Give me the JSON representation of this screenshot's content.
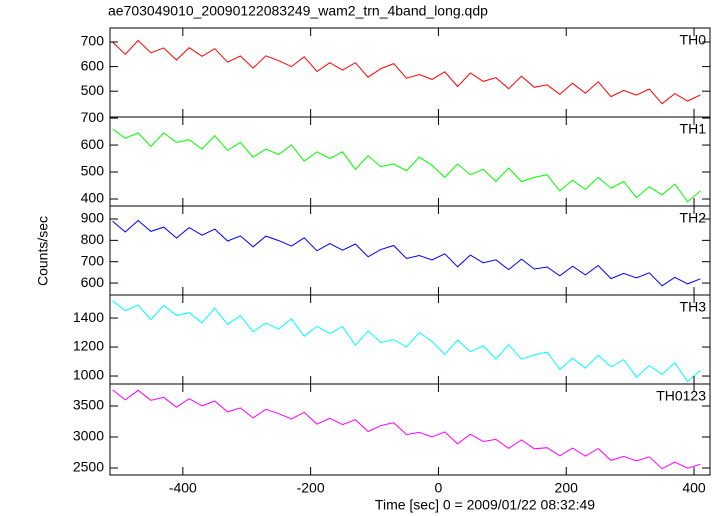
{
  "title": "ae703049010_20090122083249_wam2_trn_4band_long.qdp",
  "x_label": "Time [sec] 0 = 2009/01/22 08:32:49",
  "y_label": "Counts/sec",
  "chart_data": [
    {
      "type": "line",
      "xlim": [
        -514,
        425
      ],
      "xticks": [
        -400,
        -200,
        0,
        200,
        400
      ],
      "ylim": [
        395,
        757
      ],
      "yticks": [
        500,
        600,
        700
      ],
      "x": [
        -510,
        -490,
        -470,
        -450,
        -430,
        -410,
        -390,
        -370,
        -350,
        -330,
        -310,
        -290,
        -270,
        -250,
        -230,
        -210,
        -190,
        -170,
        -150,
        -130,
        -110,
        -90,
        -70,
        -50,
        -30,
        -10,
        10,
        30,
        50,
        70,
        90,
        110,
        130,
        150,
        170,
        190,
        210,
        230,
        250,
        270,
        290,
        310,
        330,
        350,
        370,
        390,
        410
      ],
      "series": [
        {
          "name": "TH0",
          "color": "#ff0000",
          "values": [
            700,
            650,
            706,
            656,
            676,
            627,
            677,
            642,
            673,
            618,
            643,
            594,
            644,
            624,
            600,
            640,
            580,
            616,
            586,
            616,
            557,
            592,
            612,
            553,
            568,
            548,
            579,
            519,
            574,
            540,
            555,
            510,
            561,
            516,
            526,
            487,
            532,
            492,
            538,
            478,
            503,
            484,
            509,
            449,
            490,
            460,
            485
          ]
        }
      ]
    },
    {
      "type": "line",
      "xlim": [
        -514,
        425
      ],
      "xticks": [
        -400,
        -200,
        0,
        200,
        400
      ],
      "ylim": [
        374,
        704
      ],
      "yticks": [
        400,
        500,
        600,
        700
      ],
      "x": [
        -510,
        -490,
        -470,
        -450,
        -430,
        -410,
        -390,
        -370,
        -350,
        -330,
        -310,
        -290,
        -270,
        -250,
        -230,
        -210,
        -190,
        -170,
        -150,
        -130,
        -110,
        -90,
        -70,
        -50,
        -30,
        -10,
        10,
        30,
        50,
        70,
        90,
        110,
        130,
        150,
        170,
        190,
        210,
        230,
        250,
        270,
        290,
        310,
        330,
        350,
        370,
        390,
        410
      ],
      "series": [
        {
          "name": "TH1",
          "color": "#00ff00",
          "values": [
            660,
            625,
            645,
            595,
            645,
            610,
            620,
            585,
            635,
            580,
            610,
            555,
            585,
            565,
            600,
            540,
            575,
            550,
            575,
            510,
            560,
            520,
            530,
            505,
            555,
            525,
            480,
            530,
            490,
            510,
            465,
            515,
            465,
            480,
            490,
            430,
            470,
            435,
            480,
            440,
            465,
            405,
            445,
            415,
            455,
            390,
            430
          ]
        }
      ]
    },
    {
      "type": "line",
      "xlim": [
        -514,
        425
      ],
      "xticks": [
        -400,
        -200,
        0,
        200,
        400
      ],
      "ylim": [
        544,
        961
      ],
      "yticks": [
        600,
        700,
        800,
        900
      ],
      "x": [
        -510,
        -490,
        -470,
        -450,
        -430,
        -410,
        -390,
        -370,
        -350,
        -330,
        -310,
        -290,
        -270,
        -250,
        -230,
        -210,
        -190,
        -170,
        -150,
        -130,
        -110,
        -90,
        -70,
        -50,
        -30,
        -10,
        10,
        30,
        50,
        70,
        90,
        110,
        130,
        150,
        170,
        190,
        210,
        230,
        250,
        270,
        290,
        310,
        330,
        350,
        370,
        390,
        410
      ],
      "series": [
        {
          "name": "TH2",
          "color": "#0000ff",
          "values": [
            890,
            839,
            893,
            842,
            862,
            811,
            860,
            824,
            853,
            797,
            821,
            770,
            820,
            799,
            773,
            812,
            751,
            785,
            754,
            783,
            723,
            757,
            776,
            715,
            729,
            708,
            737,
            676,
            731,
            695,
            709,
            663,
            712,
            666,
            675,
            634,
            679,
            638,
            682,
            621,
            645,
            624,
            648,
            587,
            627,
            596,
            620
          ]
        }
      ]
    },
    {
      "type": "line",
      "xlim": [
        -514,
        425
      ],
      "xticks": [
        -400,
        -200,
        0,
        200,
        400
      ],
      "ylim": [
        945,
        1559
      ],
      "yticks": [
        1000,
        1200,
        1400
      ],
      "x": [
        -510,
        -490,
        -470,
        -450,
        -430,
        -410,
        -390,
        -370,
        -350,
        -330,
        -310,
        -290,
        -270,
        -250,
        -230,
        -210,
        -190,
        -170,
        -150,
        -130,
        -110,
        -90,
        -70,
        -50,
        -30,
        -10,
        10,
        30,
        50,
        70,
        90,
        110,
        130,
        150,
        170,
        190,
        210,
        230,
        250,
        270,
        290,
        310,
        330,
        350,
        370,
        390,
        410
      ],
      "series": [
        {
          "name": "TH3",
          "color": "#00ffff",
          "values": [
            1520,
            1450,
            1489,
            1389,
            1488,
            1418,
            1437,
            1367,
            1467,
            1356,
            1416,
            1305,
            1365,
            1324,
            1394,
            1274,
            1343,
            1293,
            1342,
            1212,
            1311,
            1231,
            1251,
            1200,
            1300,
            1239,
            1149,
            1248,
            1168,
            1208,
            1117,
            1217,
            1116,
            1146,
            1165,
            1045,
            1124,
            1054,
            1144,
            1063,
            1113,
            992,
            1072,
            1011,
            1091,
            961,
            1040
          ]
        }
      ]
    },
    {
      "type": "line",
      "xlim": [
        -514,
        425
      ],
      "xticks": [
        -400,
        -200,
        0,
        200,
        400
      ],
      "ylim": [
        2387,
        3855
      ],
      "yticks": [
        2500,
        3000,
        3500
      ],
      "x": [
        -510,
        -490,
        -470,
        -450,
        -430,
        -410,
        -390,
        -370,
        -350,
        -330,
        -310,
        -290,
        -270,
        -250,
        -230,
        -210,
        -190,
        -170,
        -150,
        -130,
        -110,
        -90,
        -70,
        -50,
        -30,
        -10,
        10,
        30,
        50,
        70,
        90,
        110,
        130,
        150,
        170,
        190,
        210,
        230,
        250,
        270,
        290,
        310,
        330,
        350,
        370,
        390,
        410
      ],
      "series": [
        {
          "name": "TH0123",
          "color": "#ff00ff",
          "values": [
            3760,
            3599,
            3753,
            3592,
            3641,
            3480,
            3618,
            3502,
            3581,
            3405,
            3469,
            3308,
            3447,
            3376,
            3290,
            3399,
            3208,
            3302,
            3200,
            3279,
            3088,
            3182,
            3231,
            3040,
            3074,
            3003,
            3082,
            2891,
            3045,
            2928,
            2962,
            2816,
            2955,
            2809,
            2828,
            2697,
            2821,
            2690,
            2814,
            2623,
            2687,
            2615,
            2679,
            2488,
            2597,
            2496,
            2560
          ]
        }
      ]
    }
  ]
}
